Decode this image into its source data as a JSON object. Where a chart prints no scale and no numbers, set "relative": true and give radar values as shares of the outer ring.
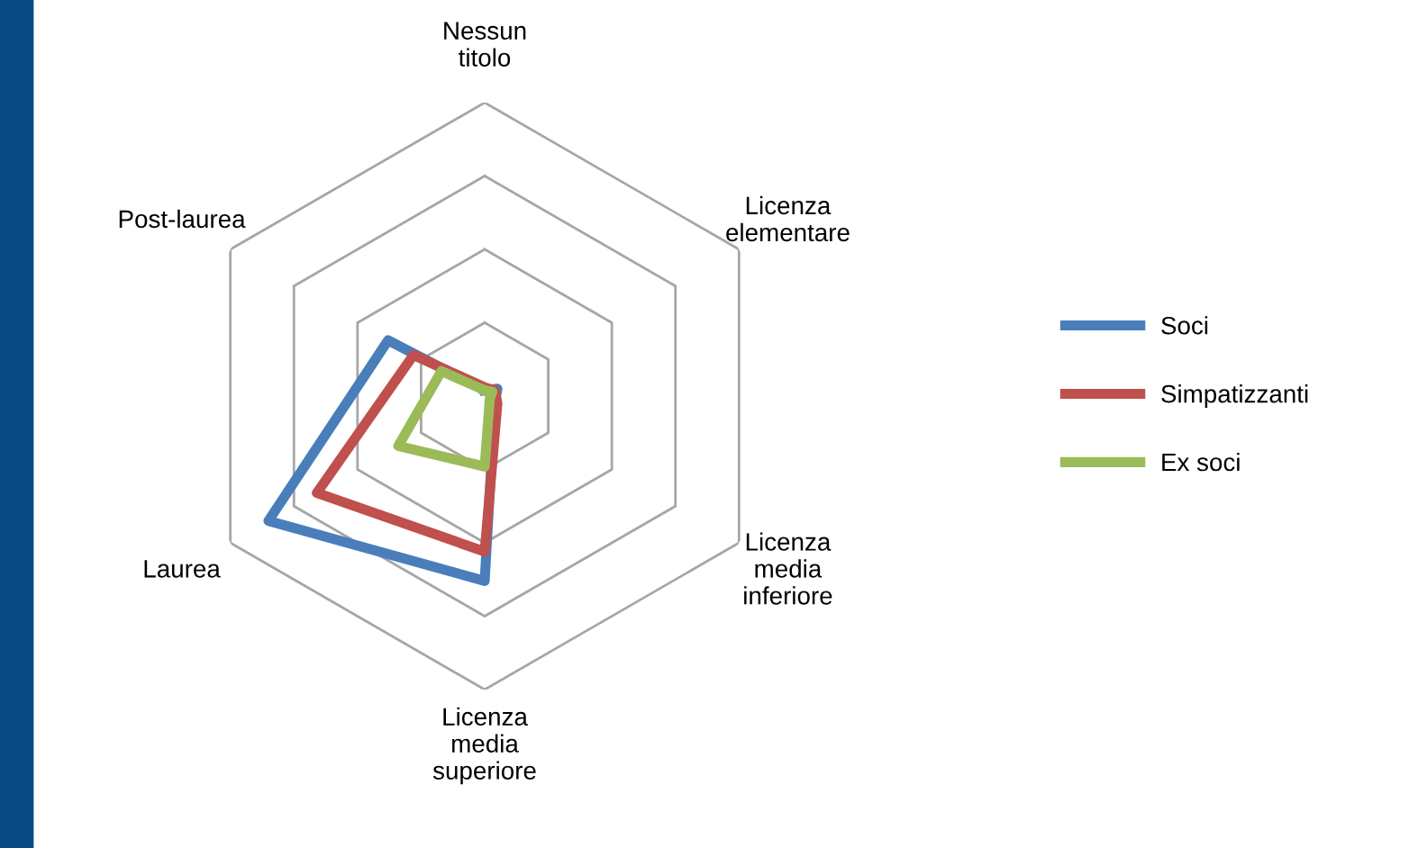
{
  "chart_data": {
    "type": "radar",
    "relative": true,
    "categories": [
      "Nessun titolo",
      "Licenza elementare",
      "Licenza media inferiore",
      "Licenza media superiore",
      "Laurea",
      "Post-laurea"
    ],
    "series": [
      {
        "name": "Soci",
        "color": "#4a7ebb",
        "values": [
          0.02,
          0.05,
          0.04,
          0.63,
          0.85,
          0.38
        ]
      },
      {
        "name": "Simpatizzanti",
        "color": "#c0504d",
        "values": [
          0.03,
          0.04,
          0.05,
          0.53,
          0.66,
          0.28
        ]
      },
      {
        "name": "Ex soci",
        "color": "#9bbb59",
        "values": [
          0.02,
          0.03,
          0.02,
          0.24,
          0.34,
          0.17
        ]
      }
    ],
    "grid": true,
    "legend": "right"
  }
}
